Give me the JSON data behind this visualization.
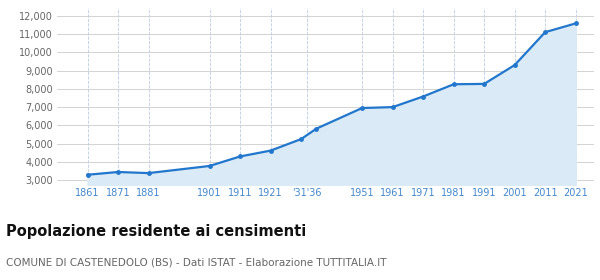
{
  "years": [
    1861,
    1871,
    1881,
    1901,
    1911,
    1921,
    1931,
    1936,
    1951,
    1961,
    1971,
    1981,
    1991,
    2001,
    2011,
    2021
  ],
  "population": [
    3300,
    3450,
    3390,
    3780,
    4300,
    4620,
    5250,
    5820,
    6950,
    7000,
    7580,
    8250,
    8270,
    9300,
    11100,
    11580
  ],
  "line_color": "#2277cc",
  "fill_color": "#daeaf7",
  "marker_color": "#2277cc",
  "background_color": "#ffffff",
  "grid_color_h": "#cccccc",
  "grid_color_v": "#bbcce0",
  "title": "Popolazione residente ai censimenti",
  "subtitle": "COMUNE DI CASTENEDOLO (BS) - Dati ISTAT - Elaborazione TUTTITALIA.IT",
  "ylabel_ticks": [
    3000,
    4000,
    5000,
    6000,
    7000,
    8000,
    9000,
    10000,
    11000,
    12000
  ],
  "ylim": [
    2750,
    12400
  ],
  "xlim": [
    1851,
    2027
  ],
  "title_fontsize": 10.5,
  "subtitle_fontsize": 7.5,
  "tick_label_color": "#4488cc",
  "ytick_label_color": "#666666"
}
